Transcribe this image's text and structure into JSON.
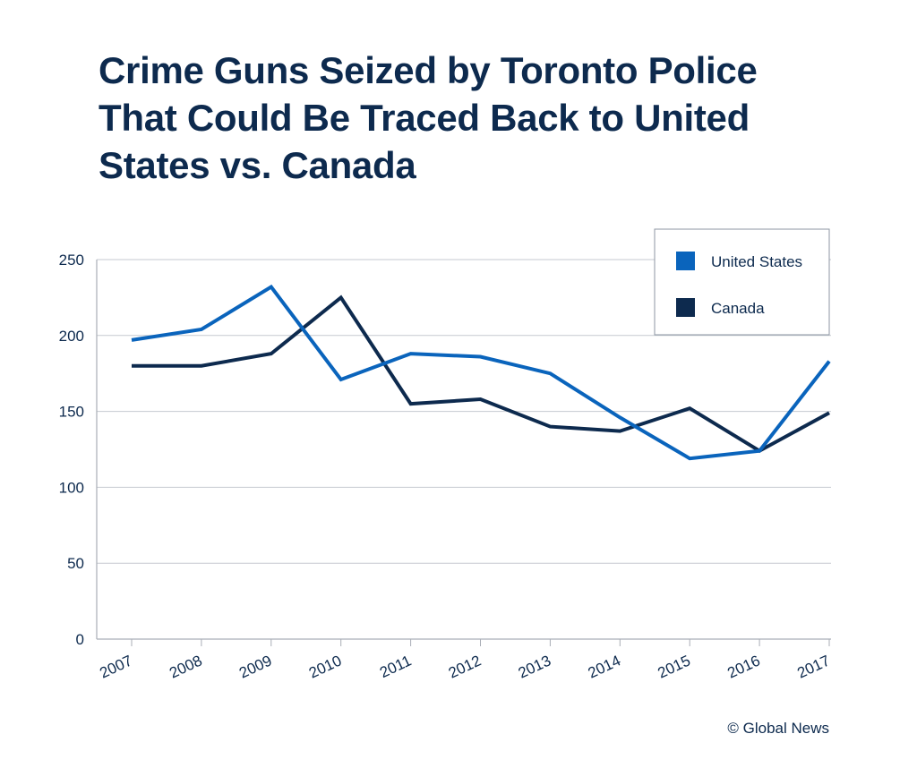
{
  "chart_data": {
    "type": "line",
    "title": "Crime Guns Seized by Toronto Police That Could Be Traced Back to United States vs. Canada",
    "xlabel": "",
    "ylabel": "",
    "categories": [
      "2007",
      "2008",
      "2009",
      "2010",
      "2011",
      "2012",
      "2013",
      "2014",
      "2015",
      "2016",
      "2017"
    ],
    "yticks": [
      0,
      50,
      100,
      150,
      200,
      250
    ],
    "ylim": [
      0,
      250
    ],
    "grid": "horizontal",
    "legend": "top-right",
    "series": [
      {
        "name": "United States",
        "color": "#0a64bc",
        "values": [
          197,
          204,
          232,
          171,
          188,
          186,
          175,
          146,
          119,
          124,
          183
        ]
      },
      {
        "name": "Canada",
        "color": "#0d2a4e",
        "values": [
          180,
          180,
          188,
          225,
          155,
          158,
          140,
          137,
          152,
          124,
          149
        ]
      }
    ]
  },
  "credit": "© Global News"
}
